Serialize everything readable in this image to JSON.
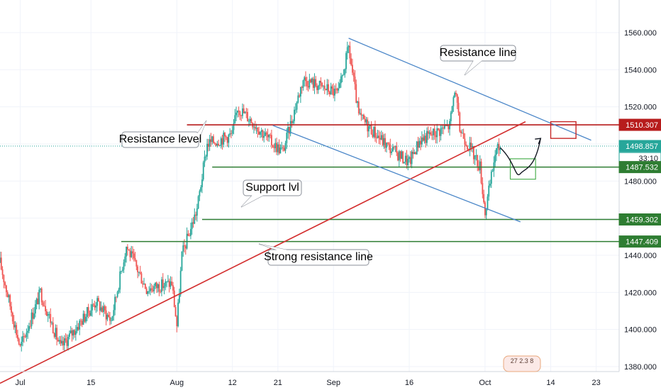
{
  "chart_data": {
    "type": "candlestick",
    "instrument_note": "",
    "x_tick_labels": [
      "Jul",
      "15",
      "Aug",
      "12",
      "21",
      "Sep",
      "16",
      "Oct",
      "14",
      "23"
    ],
    "y_tick_labels": [
      "1380.000",
      "1400.000",
      "1420.000",
      "1440.000",
      "1460.000",
      "1480.000",
      "1500.000",
      "1520.000",
      "1540.000",
      "1560.000"
    ],
    "ylim": [
      1368,
      1578
    ],
    "x_range_days": [
      "2019-06-27",
      "2019-10-26"
    ],
    "grid": true,
    "price_line_color": "#26a69a",
    "up_color": "#26a69a",
    "down_color": "#ef5350",
    "key_points": [
      {
        "date": "2019-06-27",
        "price": 1436
      },
      {
        "date": "2019-07-01",
        "price": 1390
      },
      {
        "date": "2019-07-05",
        "price": 1420
      },
      {
        "date": "2019-07-09",
        "price": 1390
      },
      {
        "date": "2019-07-16",
        "price": 1415
      },
      {
        "date": "2019-07-19",
        "price": 1405
      },
      {
        "date": "2019-07-22",
        "price": 1445
      },
      {
        "date": "2019-07-26",
        "price": 1422
      },
      {
        "date": "2019-07-31",
        "price": 1425
      },
      {
        "date": "2019-08-01",
        "price": 1402
      },
      {
        "date": "2019-08-02",
        "price": 1440
      },
      {
        "date": "2019-08-05",
        "price": 1465
      },
      {
        "date": "2019-08-07",
        "price": 1500
      },
      {
        "date": "2019-08-12",
        "price": 1505
      },
      {
        "date": "2019-08-13",
        "price": 1520
      },
      {
        "date": "2019-08-16",
        "price": 1512
      },
      {
        "date": "2019-08-20",
        "price": 1500
      },
      {
        "date": "2019-08-22",
        "price": 1496
      },
      {
        "date": "2019-08-26",
        "price": 1535
      },
      {
        "date": "2019-09-02",
        "price": 1527
      },
      {
        "date": "2019-09-04",
        "price": 1552
      },
      {
        "date": "2019-09-06",
        "price": 1515
      },
      {
        "date": "2019-09-12",
        "price": 1498
      },
      {
        "date": "2019-09-16",
        "price": 1490
      },
      {
        "date": "2019-09-18",
        "price": 1502
      },
      {
        "date": "2019-09-24",
        "price": 1510
      },
      {
        "date": "2019-09-25",
        "price": 1530
      },
      {
        "date": "2019-09-26",
        "price": 1508
      },
      {
        "date": "2019-09-30",
        "price": 1488
      },
      {
        "date": "2019-10-01",
        "price": 1463
      },
      {
        "date": "2019-10-02",
        "price": 1478
      },
      {
        "date": "2019-10-03",
        "price": 1495
      },
      {
        "date": "2019-10-04",
        "price": 1498.857
      }
    ],
    "price_labels": [
      {
        "id": "resistance",
        "text": "1510.307",
        "value": 1510.307,
        "color": "#b71c1c",
        "text_color": "#ffffff"
      },
      {
        "id": "current",
        "text": "1498.857",
        "value": 1498.857,
        "color": "#26a69a",
        "text_color": "#ffffff"
      },
      {
        "id": "countdown",
        "text": "33:10",
        "value": 1492.3,
        "color": "#ffffff",
        "text_color": "#131722",
        "border": "#26a69a"
      },
      {
        "id": "support1",
        "text": "1487.532",
        "value": 1487.532,
        "color": "#2e7d32",
        "text_color": "#ffffff"
      },
      {
        "id": "support2",
        "text": "1459.302",
        "value": 1459.302,
        "color": "#2e7d32",
        "text_color": "#ffffff"
      },
      {
        "id": "support3",
        "text": "1447.409",
        "value": 1447.409,
        "color": "#2e7d32",
        "text_color": "#ffffff"
      }
    ],
    "horizontal_levels": [
      {
        "name": "resistance-level-line",
        "value": 1510.307,
        "from": "2019-08-03",
        "color": "#b71c1c"
      },
      {
        "name": "support-level-1487",
        "value": 1487.532,
        "from": "2019-08-08",
        "color": "#2e7d32"
      },
      {
        "name": "support-level-1459",
        "value": 1459.302,
        "from": "2019-08-06",
        "color": "#2e7d32"
      },
      {
        "name": "support-level-1447",
        "value": 1447.409,
        "from": "2019-07-21",
        "color": "#2e7d32"
      }
    ],
    "trendlines": [
      {
        "name": "strong-resistance-line",
        "from": [
          "2019-06-27",
          1371
        ],
        "to": [
          "2019-10-09",
          1512
        ],
        "color": "#d32f2f"
      },
      {
        "name": "resistance-channel-top",
        "from": [
          "2019-09-04",
          1557
        ],
        "to": [
          "2019-10-22",
          1502
        ],
        "color": "#4a86c8"
      },
      {
        "name": "resistance-channel-bottom",
        "from": [
          "2019-08-20",
          1510
        ],
        "to": [
          "2019-10-08",
          1458
        ],
        "color": "#4a86c8"
      }
    ],
    "annotations": {
      "resistance_level": "Resistance level",
      "resistance_line": "Resistance line",
      "support_lvl": "Support lvl",
      "strong_resistance_line": "Strong resistance line"
    },
    "forecast": {
      "red_box": {
        "from": "2019-10-14",
        "to": "2019-10-19",
        "ymin": 1503,
        "ymax": 1512,
        "color": "#c62828"
      },
      "green_box": {
        "from": "2019-10-06",
        "to": "2019-10-11",
        "ymin": 1481,
        "ymax": 1492,
        "color": "#4caf50"
      },
      "path": [
        [
          "2019-10-04",
          1498
        ],
        [
          "2019-10-07",
          1488
        ],
        [
          "2019-10-08",
          1484
        ],
        [
          "2019-10-10",
          1488
        ],
        [
          "2019-10-12",
          1503
        ]
      ]
    },
    "watermark_text": "27 2.3 8"
  }
}
